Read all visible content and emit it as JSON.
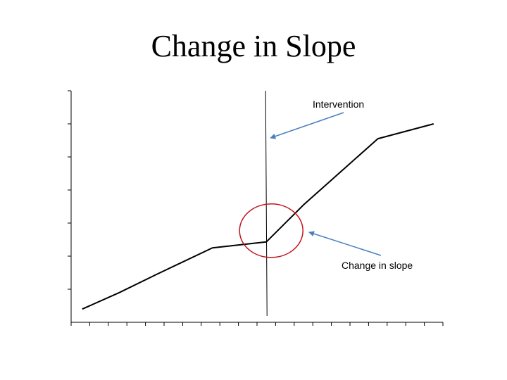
{
  "title": "Change in Slope",
  "colors": {
    "axis": "#000000",
    "series": "#000000",
    "intervention_line": "#000000",
    "circle": "#c0121b",
    "arrow": "#4a7fc0"
  },
  "chart_data": {
    "type": "line",
    "title": "Change in Slope",
    "xlabel": "",
    "ylabel": "",
    "xlim": [
      0,
      20
    ],
    "ylim": [
      0,
      7
    ],
    "grid": false,
    "x_ticks": [
      0,
      1,
      2,
      3,
      4,
      5,
      6,
      7,
      8,
      9,
      10,
      11,
      12,
      13,
      14,
      15,
      16,
      17,
      18,
      19,
      20
    ],
    "y_ticks": [
      0,
      1,
      2,
      3,
      4,
      5,
      6,
      7
    ],
    "series": [
      {
        "name": "",
        "x": [
          0.6,
          2.6,
          4.6,
          7.6,
          10.5,
          12.5,
          14.5,
          16.5,
          19.5
        ],
        "y": [
          0.4,
          0.9,
          1.45,
          2.25,
          2.43,
          3.55,
          4.55,
          5.55,
          6.0
        ]
      }
    ],
    "x_values_note": null,
    "intervention": {
      "x": 10.5,
      "label": "Intervention"
    },
    "annotations": [
      {
        "text": "Intervention",
        "target": "intervention-line"
      },
      {
        "text": "Change in slope",
        "target": "slope-change-point"
      }
    ]
  }
}
